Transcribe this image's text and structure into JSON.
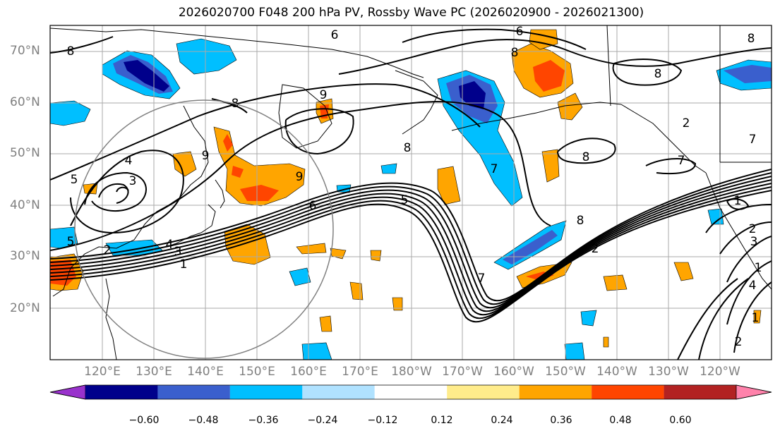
{
  "title": "2026020700 F048 200 hPa PV, Rossby Wave PC (2026020900 - 2026021300)",
  "lat_labels": [
    "70°N",
    "60°N",
    "50°N",
    "40°N",
    "30°N",
    "20°N"
  ],
  "lon_labels": [
    "120°E",
    "130°E",
    "140°E",
    "150°E",
    "160°E",
    "170°E",
    "180°W",
    "170°W",
    "160°W",
    "150°W",
    "140°W",
    "130°W",
    "120°W"
  ],
  "colorbar": {
    "ticks": [
      "−0.60",
      "−0.48",
      "−0.36",
      "−0.24",
      "−0.12",
      "0.12",
      "0.24",
      "0.36",
      "0.48",
      "0.60"
    ],
    "colors": [
      "#9932cc",
      "#00008b",
      "#3a5fcd",
      "#00bfff",
      "#b0e2ff",
      "#ffffff",
      "#ffec8b",
      "#ffa500",
      "#ff4500",
      "#b22222",
      "#ff82ab"
    ]
  },
  "contour_labels": [
    "8",
    "6",
    "6",
    "8",
    "8",
    "8",
    "9",
    "8",
    "9",
    "8",
    "7",
    "8",
    "7",
    "4",
    "3",
    "5",
    "2",
    "1",
    "3",
    "4",
    "5",
    "6",
    "5",
    "7",
    "8",
    "2",
    "1",
    "2",
    "3",
    "1",
    "4",
    "2",
    "1",
    "2",
    "7",
    "9"
  ]
}
